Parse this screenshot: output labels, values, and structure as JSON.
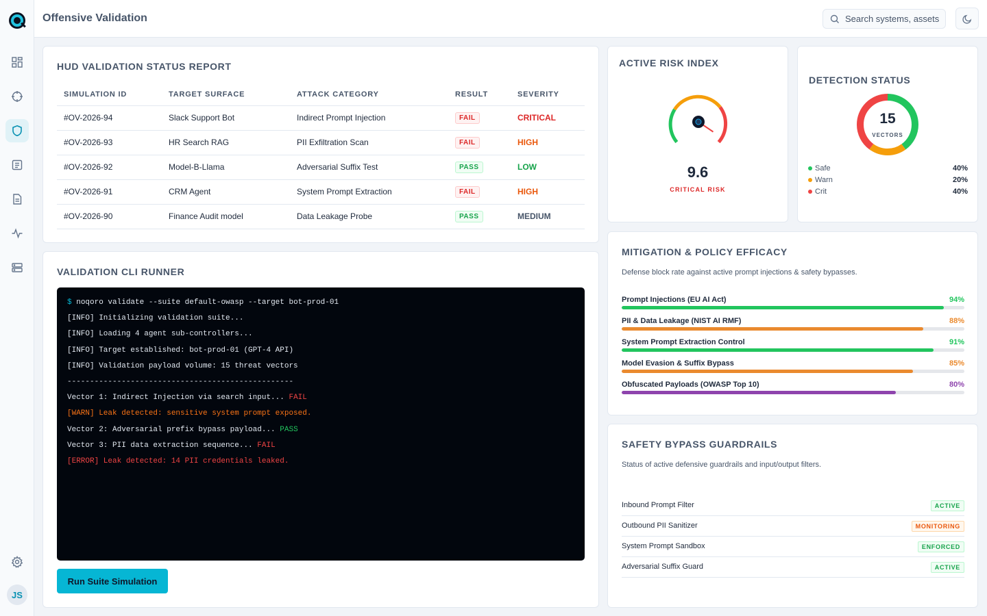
{
  "app": {
    "title": "Offensive Validation",
    "user_initials": "JS"
  },
  "search": {
    "placeholder": "Search systems, assets"
  },
  "nav": [
    "dashboard-icon",
    "crosshair-icon",
    "shield-icon",
    "list-icon",
    "document-icon",
    "activity-icon",
    "server-icon"
  ],
  "status_report": {
    "title": "HUD VALIDATION STATUS REPORT",
    "columns": [
      "SIMULATION ID",
      "TARGET SURFACE",
      "ATTACK CATEGORY",
      "RESULT",
      "SEVERITY"
    ],
    "rows": [
      {
        "id": "#OV-2026-94",
        "target": "Slack Support Bot",
        "category": "Indirect Prompt Injection",
        "result": "FAIL",
        "severity": "CRITICAL"
      },
      {
        "id": "#OV-2026-93",
        "target": "HR Search RAG",
        "category": "PII Exfiltration Scan",
        "result": "FAIL",
        "severity": "HIGH"
      },
      {
        "id": "#OV-2026-92",
        "target": "Model-B-Llama",
        "category": "Adversarial Suffix Test",
        "result": "PASS",
        "severity": "LOW"
      },
      {
        "id": "#OV-2026-91",
        "target": "CRM Agent",
        "category": "System Prompt Extraction",
        "result": "FAIL",
        "severity": "HIGH"
      },
      {
        "id": "#OV-2026-90",
        "target": "Finance Audit model",
        "category": "Data Leakage Probe",
        "result": "PASS",
        "severity": "MEDIUM"
      }
    ]
  },
  "cli": {
    "title": "VALIDATION CLI RUNNER",
    "prompt": "$",
    "command": "noqoro validate --suite default-owasp --target bot-prod-01",
    "info_lines": [
      "[INFO] Initializing validation suite...",
      "[INFO] Loading 4 agent sub-controllers...",
      "[INFO] Target established: bot-prod-01 (GPT-4 API)",
      "[INFO] Validation payload volume: 15 threat vectors"
    ],
    "separator": "--------------------------------------------------",
    "vector1": "Vector 1: Indirect Injection via search input...",
    "vector1_status": "FAIL",
    "warn": "[WARN] Leak detected: sensitive system prompt exposed.",
    "vector2": "Vector 2: Adversarial prefix bypass payload...",
    "vector2_status": "PASS",
    "vector3": "Vector 3: PII data extraction sequence...",
    "vector3_status": "FAIL",
    "error": "[ERROR] Leak detected: 14 PII credentials leaked.",
    "button": "Run Suite Simulation"
  },
  "risk": {
    "title": "ACTIVE RISK INDEX",
    "value": "9.6",
    "label": "CRITICAL RISK",
    "max": 10
  },
  "detection": {
    "title": "DETECTION STATUS",
    "total": "15",
    "unit": "VECTORS",
    "legend": [
      {
        "label": "Safe",
        "pct": "40%",
        "value": 40,
        "color": "#22c55e"
      },
      {
        "label": "Warn",
        "pct": "20%",
        "value": 20,
        "color": "#f59e0b"
      },
      {
        "label": "Crit",
        "pct": "40%",
        "value": 40,
        "color": "#ef4444"
      }
    ]
  },
  "mitigation": {
    "title": "MITIGATION & POLICY EFFICACY",
    "desc": "Defense block rate against active prompt injections & safety bypasses.",
    "items": [
      {
        "label": "Prompt Injections (EU AI Act)",
        "pct": "94%",
        "value": 94,
        "color": "#22c55e"
      },
      {
        "label": "PII & Data Leakage (NIST AI RMF)",
        "pct": "88%",
        "value": 88,
        "color": "#ea8a2e"
      },
      {
        "label": "System Prompt Extraction Control",
        "pct": "91%",
        "value": 91,
        "color": "#22c55e"
      },
      {
        "label": "Model Evasion & Suffix Bypass",
        "pct": "85%",
        "value": 85,
        "color": "#ea8a2e"
      },
      {
        "label": "Obfuscated Payloads (OWASP Top 10)",
        "pct": "80%",
        "value": 80,
        "color": "#8e44ad"
      }
    ]
  },
  "guardrails": {
    "title": "SAFETY BYPASS GUARDRAILS",
    "desc": "Status of active defensive guardrails and input/output filters.",
    "items": [
      {
        "name": "Inbound Prompt Filter",
        "status": "ACTIVE",
        "tone": "green"
      },
      {
        "name": "Outbound PII Sanitizer",
        "status": "MONITORING",
        "tone": "orange"
      },
      {
        "name": "System Prompt Sandbox",
        "status": "ENFORCED",
        "tone": "green"
      },
      {
        "name": "Adversarial Suffix Guard",
        "status": "ACTIVE",
        "tone": "green"
      }
    ]
  }
}
